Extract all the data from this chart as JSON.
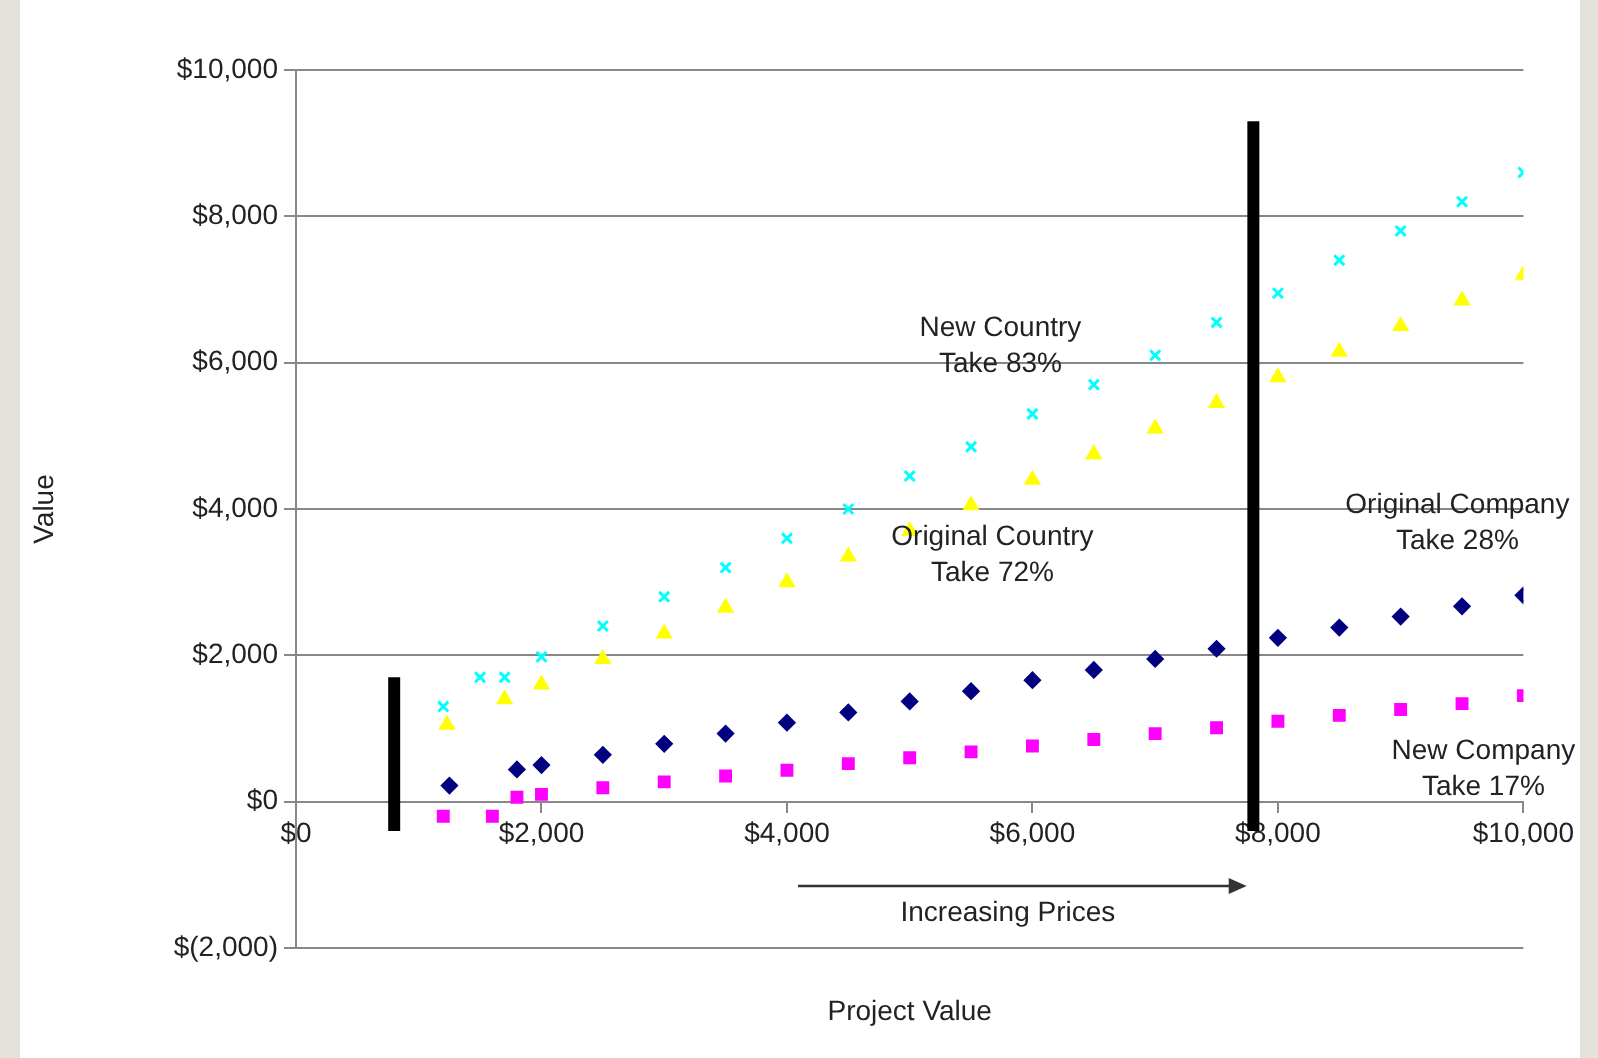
{
  "chart_data": {
    "type": "scatter",
    "xlabel": "Project Value",
    "ylabel": "Value",
    "xlim": [
      0,
      10000
    ],
    "ylim": [
      -2000,
      10000
    ],
    "xticks": [
      {
        "value": 0,
        "label": "$0"
      },
      {
        "value": 2000,
        "label": "$2,000"
      },
      {
        "value": 4000,
        "label": "$4,000"
      },
      {
        "value": 6000,
        "label": "$6,000"
      },
      {
        "value": 8000,
        "label": "$8,000"
      },
      {
        "value": 10000,
        "label": "$10,000"
      }
    ],
    "yticks": [
      {
        "value": -2000,
        "label": "$(2,000)"
      },
      {
        "value": 0,
        "label": "$0"
      },
      {
        "value": 2000,
        "label": "$2,000"
      },
      {
        "value": 4000,
        "label": "$4,000"
      },
      {
        "value": 6000,
        "label": "$6,000"
      },
      {
        "value": 8000,
        "label": "$8,000"
      },
      {
        "value": 10000,
        "label": "$10,000"
      }
    ],
    "grid": "y",
    "legend": false,
    "series": [
      {
        "name": "New Country\nTake 83%",
        "color": "#00ffff",
        "marker": "cross",
        "x": [
          1200,
          1500,
          1700,
          2000,
          2500,
          3000,
          3500,
          4000,
          4500,
          5000,
          5500,
          6000,
          6500,
          7000,
          7500,
          8000,
          8500,
          9000,
          9500,
          10000
        ],
        "values": [
          1300,
          1700,
          1700,
          1980,
          2400,
          2800,
          3200,
          3600,
          4000,
          4450,
          4850,
          5300,
          5700,
          6100,
          6550,
          6950,
          7400,
          7800,
          8200,
          8600
        ]
      },
      {
        "name": "Original Country\nTake 72%",
        "color": "#ffff00",
        "marker": "triangle",
        "x": [
          1230,
          1700,
          2000,
          2500,
          3000,
          3500,
          4000,
          4500,
          5000,
          5500,
          6000,
          6500,
          7000,
          7500,
          8000,
          8500,
          9000,
          9500,
          10000
        ],
        "values": [
          1050,
          1400,
          1600,
          1950,
          2300,
          2650,
          3000,
          3350,
          3700,
          4050,
          4400,
          4750,
          5100,
          5450,
          5800,
          6150,
          6500,
          6850,
          7200
        ]
      },
      {
        "name": "Original Company\nTake 28%",
        "color": "#000080",
        "marker": "diamond",
        "x": [
          1250,
          1800,
          2000,
          2500,
          3000,
          3500,
          4000,
          4500,
          5000,
          5500,
          6000,
          6500,
          7000,
          7500,
          8000,
          8500,
          9000,
          9500,
          10000
        ],
        "values": [
          220,
          440,
          500,
          640,
          790,
          930,
          1080,
          1220,
          1370,
          1510,
          1660,
          1800,
          1950,
          2090,
          2240,
          2380,
          2530,
          2670,
          2820
        ]
      },
      {
        "name": "New Company\nTake 17%",
        "color": "#ff00ff",
        "marker": "square",
        "x": [
          1200,
          1600,
          1800,
          2000,
          2500,
          3000,
          3500,
          4000,
          4500,
          5000,
          5500,
          6000,
          6500,
          7000,
          7500,
          8000,
          8500,
          9000,
          9500,
          10000
        ],
        "values": [
          -200,
          -200,
          60,
          100,
          190,
          270,
          350,
          430,
          520,
          600,
          680,
          760,
          850,
          930,
          1010,
          1100,
          1180,
          1260,
          1340,
          1450
        ]
      },
      {
        "type": "line",
        "color": "#000000",
        "x": [
          800,
          800
        ],
        "values": [
          -400,
          1700
        ]
      },
      {
        "type": "line",
        "color": "#000000",
        "x": [
          7800,
          7800
        ],
        "values": [
          -400,
          9300
        ]
      }
    ],
    "annotations": [
      "Increasing Prices"
    ]
  }
}
